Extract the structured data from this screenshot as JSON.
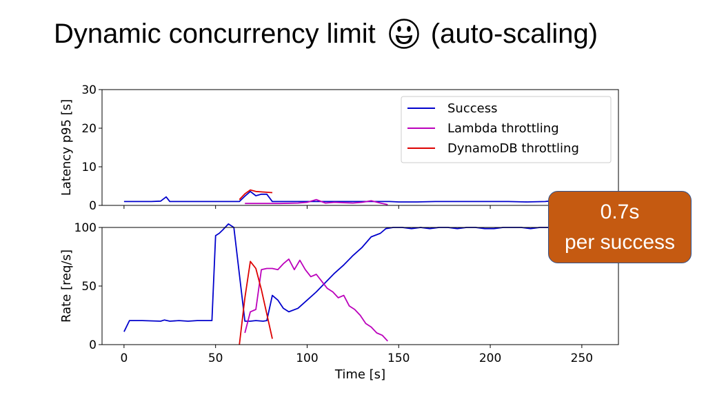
{
  "slide": {
    "title_pre": "Dynamic concurrency limit",
    "title_post": "(auto-scaling)",
    "emoji": "smiley-face"
  },
  "callout": {
    "line1": "0.7s",
    "line2": "per success",
    "bg_color": "#c55a11"
  },
  "colors": {
    "success": "#0000cc",
    "lambda": "#bb00bb",
    "dynamo": "#dd0000"
  },
  "chart_data": [
    {
      "type": "line",
      "title": "",
      "xlabel": "",
      "ylabel": "Latency p95 [s]",
      "xlim": [
        -12,
        270
      ],
      "ylim": [
        0,
        30
      ],
      "yticks": [
        0,
        10,
        20,
        30
      ],
      "grid": false,
      "legend_position": "top-right",
      "legend": [
        "Success",
        "Lambda throttling",
        "DynamoDB throttling"
      ],
      "series": [
        {
          "name": "Success",
          "color": "#0000cc",
          "x": [
            0,
            5,
            10,
            15,
            20,
            23,
            25,
            30,
            35,
            40,
            45,
            50,
            55,
            60,
            63,
            66,
            69,
            72,
            75,
            78,
            81,
            84,
            87,
            90,
            95,
            100,
            105,
            110,
            115,
            120,
            125,
            130,
            135,
            140,
            145,
            150,
            160,
            170,
            180,
            190,
            200,
            210,
            220,
            230,
            232
          ],
          "y": [
            1,
            1,
            1,
            1,
            1.1,
            2.2,
            1,
            1,
            1,
            1,
            1,
            1,
            1,
            1,
            1,
            2.4,
            3.6,
            2.5,
            2.9,
            2.9,
            1,
            1,
            1,
            1,
            1,
            1,
            1,
            1,
            1,
            1,
            1,
            1,
            1,
            1,
            1,
            0.9,
            0.9,
            1,
            1,
            1,
            1,
            1,
            0.9,
            1,
            1.1
          ]
        },
        {
          "name": "Lambda throttling",
          "color": "#bb00bb",
          "x": [
            66,
            75,
            85,
            95,
            100,
            105,
            110,
            115,
            120,
            125,
            130,
            135,
            140,
            144
          ],
          "y": [
            0.5,
            0.5,
            0.5,
            0.6,
            0.8,
            1.5,
            0.6,
            0.8,
            0.7,
            0.6,
            0.8,
            1.2,
            0.6,
            0.2
          ]
        },
        {
          "name": "DynamoDB throttling",
          "color": "#dd0000",
          "x": [
            63,
            66,
            69,
            72,
            75,
            81
          ],
          "y": [
            1.5,
            3,
            4,
            3.6,
            3.5,
            3.3
          ]
        }
      ]
    },
    {
      "type": "line",
      "title": "",
      "xlabel": "Time [s]",
      "ylabel": "Rate [req/s]",
      "xlim": [
        -12,
        270
      ],
      "ylim": [
        0,
        100
      ],
      "xticks": [
        0,
        50,
        100,
        150,
        200,
        250
      ],
      "yticks": [
        0,
        50,
        100
      ],
      "grid": false,
      "series": [
        {
          "name": "Success",
          "color": "#0000cc",
          "x": [
            0,
            3,
            10,
            20,
            22,
            25,
            30,
            35,
            40,
            45,
            48,
            50,
            52,
            54,
            57,
            60,
            63,
            66,
            69,
            72,
            76,
            78,
            81,
            84,
            87,
            90,
            95,
            100,
            105,
            110,
            115,
            120,
            125,
            130,
            135,
            140,
            143,
            147,
            152,
            157,
            162,
            167,
            172,
            177,
            182,
            187,
            192,
            197,
            202,
            207,
            212,
            217,
            222,
            227,
            232
          ],
          "y": [
            11,
            20.5,
            20.5,
            20,
            21,
            20,
            20.5,
            20,
            20.5,
            20.5,
            20.5,
            93,
            95,
            98,
            103,
            100,
            60,
            20,
            20,
            20.5,
            20,
            20.5,
            42,
            38,
            31,
            28,
            31,
            38,
            45,
            53,
            61,
            68,
            76,
            83,
            92,
            95,
            99,
            100,
            100,
            99,
            100,
            99,
            100,
            100,
            99,
            100,
            100,
            99,
            99,
            100,
            100,
            100,
            99,
            100,
            100
          ]
        },
        {
          "name": "Lambda throttling",
          "color": "#bb00bb",
          "x": [
            66,
            69,
            72,
            75,
            78,
            81,
            84,
            87,
            90,
            93,
            96,
            99,
            102,
            105,
            108,
            111,
            114,
            117,
            120,
            123,
            126,
            129,
            132,
            135,
            138,
            141,
            144
          ],
          "y": [
            10,
            28,
            30,
            64,
            65,
            65,
            64,
            69,
            73,
            64,
            72,
            64,
            58,
            60,
            54,
            48,
            45,
            40,
            42,
            33,
            30,
            25,
            18,
            15,
            10,
            8,
            3
          ]
        },
        {
          "name": "DynamoDB throttling",
          "color": "#dd0000",
          "x": [
            63,
            66,
            69,
            72,
            75,
            81
          ],
          "y": [
            0,
            40,
            71,
            65,
            47,
            5
          ]
        }
      ]
    }
  ]
}
